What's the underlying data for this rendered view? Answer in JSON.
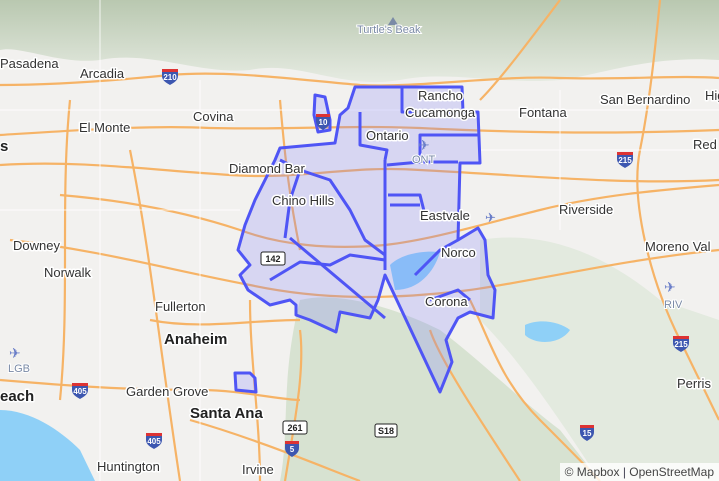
{
  "map": {
    "places": [
      {
        "id": "pasadena",
        "label": "Pasadena"
      },
      {
        "id": "arcadia",
        "label": "Arcadia"
      },
      {
        "id": "covina",
        "label": "Covina"
      },
      {
        "id": "el-monte",
        "label": "El Monte"
      },
      {
        "id": "diamond-bar",
        "label": "Diamond Bar"
      },
      {
        "id": "chino-hills",
        "label": "Chino Hills"
      },
      {
        "id": "ontario",
        "label": "Ontario"
      },
      {
        "id": "rancho",
        "label": "Rancho"
      },
      {
        "id": "cucamonga",
        "label": "Cucamonga"
      },
      {
        "id": "fontana",
        "label": "Fontana"
      },
      {
        "id": "san-bernardino",
        "label": "San Bernardino"
      },
      {
        "id": "hig",
        "label": "Hig"
      },
      {
        "id": "red",
        "label": "Red"
      },
      {
        "id": "riverside",
        "label": "Riverside"
      },
      {
        "id": "eastvale",
        "label": "Eastvale"
      },
      {
        "id": "norco",
        "label": "Norco"
      },
      {
        "id": "corona",
        "label": "Corona"
      },
      {
        "id": "moreno-valley",
        "label": "Moreno Val"
      },
      {
        "id": "downey",
        "label": "Downey"
      },
      {
        "id": "norwalk",
        "label": "Norwalk"
      },
      {
        "id": "fullerton",
        "label": "Fullerton"
      },
      {
        "id": "anaheim",
        "label": "Anaheim"
      },
      {
        "id": "garden-grove",
        "label": "Garden Grove"
      },
      {
        "id": "santa-ana",
        "label": "Santa Ana"
      },
      {
        "id": "huntington",
        "label": "Huntington"
      },
      {
        "id": "irvine",
        "label": "Irvine"
      },
      {
        "id": "perris",
        "label": "Perris"
      },
      {
        "id": "long-beach",
        "label": "each"
      },
      {
        "id": "los-angeles",
        "label": "s"
      }
    ],
    "pois": [
      {
        "id": "turtles-beak",
        "label": "Turtle's Beak",
        "icon": "mountain-peak-icon"
      },
      {
        "id": "ont",
        "label": "ONT",
        "icon": "airport-icon"
      },
      {
        "id": "riv",
        "label": "RIV",
        "icon": "airport-icon"
      },
      {
        "id": "lgb",
        "label": "LGB",
        "icon": "airport-icon"
      }
    ],
    "shields": {
      "interstate": [
        "210",
        "10",
        "215",
        "405",
        "405",
        "5",
        "15",
        "215"
      ],
      "state": [
        "142",
        "261",
        "S18"
      ]
    },
    "overlay_color": "#4f55f5",
    "water_color": "#8fd0f7"
  },
  "attribution": {
    "mapbox": "© Mapbox",
    "separator": "|",
    "osm": "OpenStreetMap"
  }
}
